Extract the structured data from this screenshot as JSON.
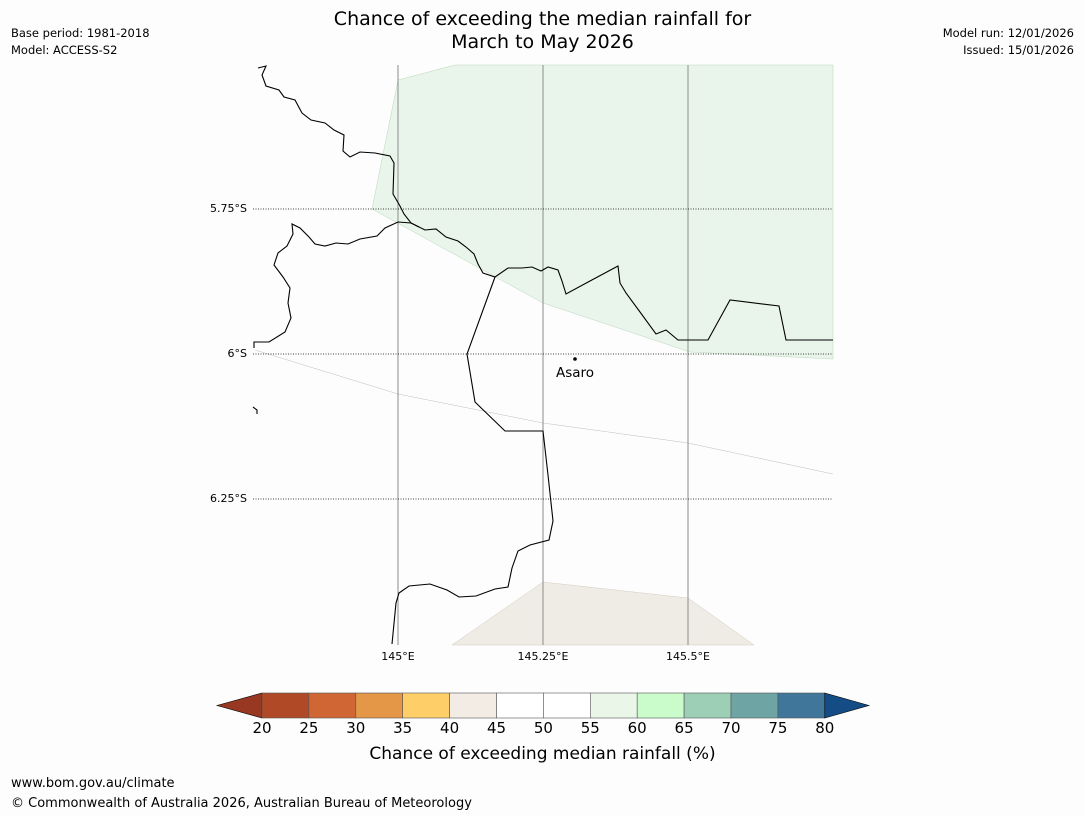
{
  "title": {
    "line1": "Chance of exceeding the median rainfall for",
    "line2": "March to May 2026"
  },
  "meta_left": {
    "base_period": "Base period: 1981-2018",
    "model": "Model: ACCESS-S2"
  },
  "meta_right": {
    "model_run": "Model run: 12/01/2026",
    "issued": "Issued: 15/01/2026"
  },
  "map": {
    "lat_labels": [
      "5.75°S",
      "6°S",
      "6.25°S"
    ],
    "lon_labels": [
      "145°E",
      "145.25°E",
      "145.5°E"
    ],
    "place": {
      "name": "Asaro"
    },
    "region_colors": {
      "north": "#e9f5ea",
      "south": "#efebe5",
      "coast": "#000000",
      "grid": "#000000"
    }
  },
  "colorbar": {
    "label": "Chance of exceeding median rainfall (%)",
    "ticks": [
      "20",
      "25",
      "30",
      "35",
      "40",
      "45",
      "50",
      "55",
      "60",
      "65",
      "70",
      "75",
      "80"
    ],
    "colors": [
      "#b04a26",
      "#cf6633",
      "#e39747",
      "#fece69",
      "#f2ece5",
      "#ffffff",
      "#ffffff",
      "#e9f6e8",
      "#c9fbcb",
      "#9dcfb6",
      "#6ea4a4",
      "#3f7699"
    ],
    "under_color": "#983722",
    "over_color": "#144d85"
  },
  "footer": {
    "url": "www.bom.gov.au/climate",
    "copyright": "© Commonwealth of Australia 2026, Australian Bureau of Meteorology"
  }
}
